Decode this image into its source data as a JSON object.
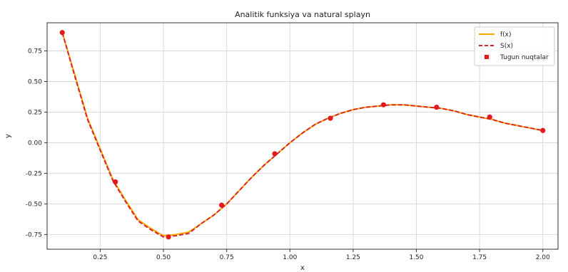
{
  "chart_data": {
    "type": "line",
    "title": "Analitik funksiya va natural splayn",
    "xlabel": "x",
    "ylabel": "y",
    "xlim": [
      0.04,
      2.06
    ],
    "ylim": [
      -0.87,
      0.98
    ],
    "grid": true,
    "legend_position": "top-right",
    "xticks": [
      0.25,
      0.5,
      0.75,
      1.0,
      1.25,
      1.5,
      1.75,
      2.0
    ],
    "xtick_labels": [
      "0.25",
      "0.50",
      "0.75",
      "1.00",
      "1.25",
      "1.50",
      "1.75",
      "2.00"
    ],
    "yticks": [
      -0.75,
      -0.5,
      -0.25,
      0.0,
      0.25,
      0.5,
      0.75
    ],
    "ytick_labels": [
      "-0.75",
      "-0.50",
      "-0.25",
      "0.00",
      "0.25",
      "0.50",
      "0.75"
    ],
    "series": [
      {
        "name": "f(x)",
        "style": "solid",
        "color": "#ffa500",
        "x": [
          0.1,
          0.15,
          0.2,
          0.25,
          0.3,
          0.35,
          0.4,
          0.45,
          0.5,
          0.55,
          0.6,
          0.65,
          0.7,
          0.75,
          0.8,
          0.85,
          0.9,
          0.95,
          1.0,
          1.05,
          1.1,
          1.15,
          1.2,
          1.25,
          1.3,
          1.35,
          1.4,
          1.45,
          1.5,
          1.55,
          1.6,
          1.65,
          1.7,
          1.75,
          1.8,
          1.85,
          1.9,
          1.95,
          2.0
        ],
        "y": [
          0.9,
          0.55,
          0.2,
          -0.05,
          -0.3,
          -0.47,
          -0.63,
          -0.7,
          -0.76,
          -0.75,
          -0.73,
          -0.66,
          -0.59,
          -0.5,
          -0.39,
          -0.28,
          -0.18,
          -0.09,
          0.0,
          0.08,
          0.15,
          0.2,
          0.24,
          0.27,
          0.29,
          0.3,
          0.31,
          0.31,
          0.3,
          0.29,
          0.28,
          0.26,
          0.23,
          0.21,
          0.19,
          0.16,
          0.14,
          0.12,
          0.1
        ]
      },
      {
        "name": "S(x)",
        "style": "dashed",
        "color": "#d62728",
        "x": [
          0.1,
          0.15,
          0.2,
          0.25,
          0.3,
          0.35,
          0.4,
          0.45,
          0.5,
          0.55,
          0.6,
          0.65,
          0.7,
          0.75,
          0.8,
          0.85,
          0.9,
          0.95,
          1.0,
          1.05,
          1.1,
          1.15,
          1.2,
          1.25,
          1.3,
          1.35,
          1.4,
          1.45,
          1.5,
          1.55,
          1.6,
          1.65,
          1.7,
          1.75,
          1.8,
          1.85,
          1.9,
          1.95,
          2.0
        ],
        "y": [
          0.9,
          0.54,
          0.19,
          -0.06,
          -0.31,
          -0.48,
          -0.64,
          -0.71,
          -0.77,
          -0.76,
          -0.74,
          -0.66,
          -0.59,
          -0.5,
          -0.39,
          -0.28,
          -0.18,
          -0.09,
          0.0,
          0.08,
          0.15,
          0.2,
          0.24,
          0.27,
          0.29,
          0.3,
          0.31,
          0.31,
          0.3,
          0.29,
          0.28,
          0.26,
          0.23,
          0.21,
          0.19,
          0.16,
          0.14,
          0.12,
          0.1
        ]
      },
      {
        "name": "Tugun nuqtalar",
        "style": "markers",
        "color": "#e31a1c",
        "x": [
          0.1,
          0.31,
          0.52,
          0.73,
          0.94,
          1.16,
          1.37,
          1.58,
          1.79,
          2.0
        ],
        "y": [
          0.9,
          -0.32,
          -0.77,
          -0.51,
          -0.09,
          0.2,
          0.31,
          0.29,
          0.21,
          0.1
        ]
      }
    ]
  }
}
